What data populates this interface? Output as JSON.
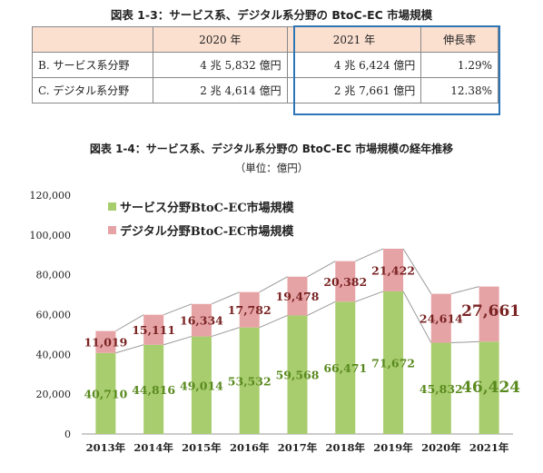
{
  "table": {
    "title": "図表 1-3：サービス系、デジタル系分野の BtoC-EC 市場規模",
    "headers": [
      "",
      "2020 年",
      "2021 年",
      "伸長率"
    ],
    "rows": [
      [
        "B. サービス系分野",
        "4 兆 5,832 億円",
        "4 兆 6,424 億円",
        "1.29%"
      ],
      [
        "C. デジタル系分野",
        "2 兆 4,614 億円",
        "2 兆 7,661 億円",
        "12.38%"
      ]
    ]
  },
  "chart_title": "図表 1-4：サービス系、デジタル系分野の BtoC-EC 市場規模の経年推移",
  "chart_unit": "（単位：億円）",
  "colors": {
    "service": "#a8cd6e",
    "digital": "#e6a3a5",
    "service_label": "#5a8a1f",
    "digital_label": "#7a2323",
    "highlight_border": "#2e75b6",
    "header_bg": "#fbe0d0"
  },
  "chart_data": {
    "type": "bar",
    "stacked": true,
    "categories": [
      "2013年",
      "2014年",
      "2015年",
      "2016年",
      "2017年",
      "2018年",
      "2019年",
      "2020年",
      "2021年"
    ],
    "series": [
      {
        "name": "サービス分野BtoC-EC市場規模",
        "values": [
          40710,
          44816,
          49014,
          53532,
          59568,
          66471,
          71672,
          45832,
          46424
        ]
      },
      {
        "name": "デジタル分野BtoC-EC市場規模",
        "values": [
          11019,
          15111,
          16334,
          17782,
          19478,
          20382,
          21422,
          24614,
          27661
        ]
      }
    ],
    "ylim": [
      0,
      120000
    ],
    "yticks": [
      "0",
      "20,000",
      "40,000",
      "60,000",
      "80,000",
      "100,000",
      "120,000"
    ],
    "grid": false,
    "legend": "top-left",
    "emphasized_categories": [
      "2021年"
    ]
  }
}
